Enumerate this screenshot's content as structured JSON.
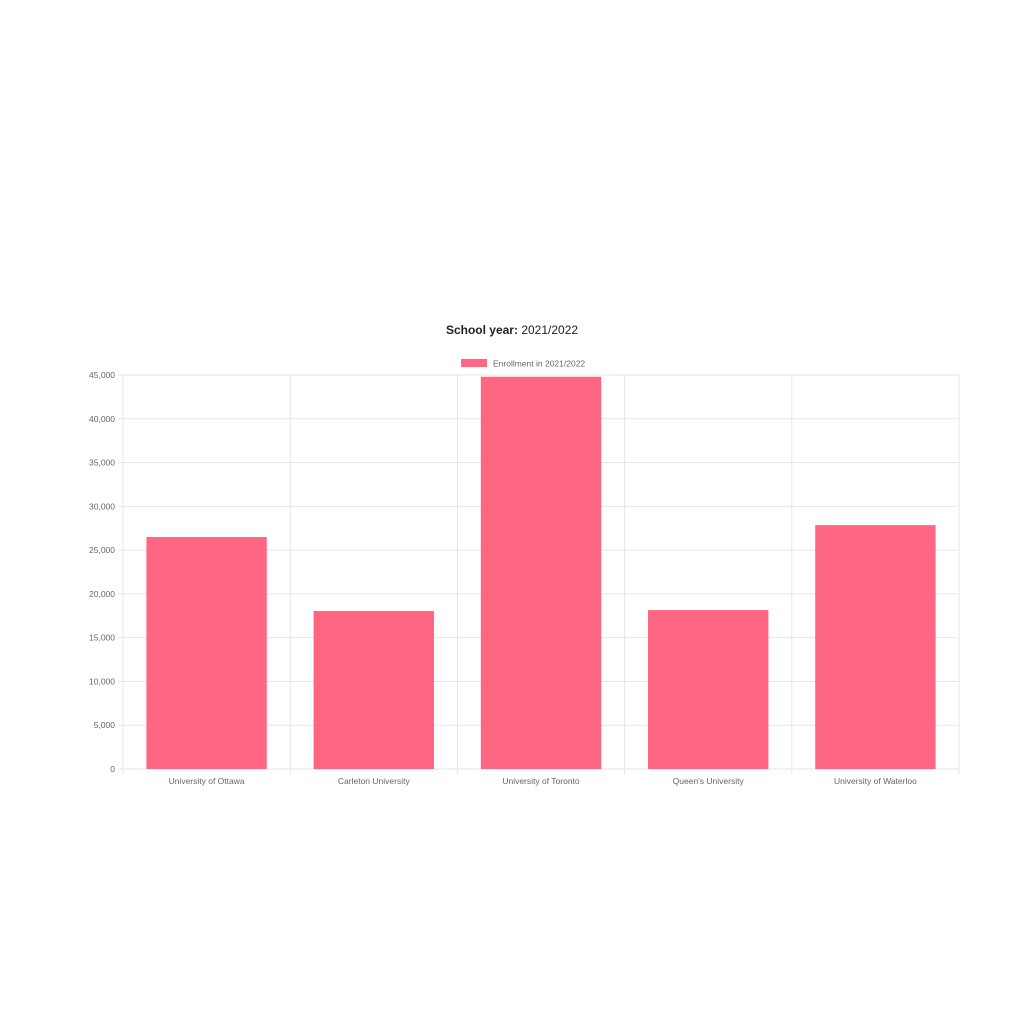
{
  "title": {
    "label": "School year:",
    "value": "2021/2022"
  },
  "colors": {
    "bar": "#ff6682",
    "grid": "#e6e6e6",
    "axis_text": "#666666"
  },
  "chart_data": {
    "type": "bar",
    "title": "School year: 2021/2022",
    "categories": [
      "University of Ottawa",
      "Carleton University",
      "University of Toronto",
      "Queen's University",
      "University of Waterloo"
    ],
    "series": [
      {
        "name": "Enrollment in 2021/2022",
        "values": [
          26500,
          18050,
          44800,
          18150,
          27850
        ]
      }
    ],
    "ylim": [
      0,
      45000
    ],
    "yticks": [
      0,
      5000,
      10000,
      15000,
      20000,
      25000,
      30000,
      35000,
      40000,
      45000
    ],
    "ytick_labels": [
      "0",
      "5,000",
      "10,000",
      "15,000",
      "20,000",
      "25,000",
      "30,000",
      "35,000",
      "40,000",
      "45,000"
    ],
    "xlabel": "",
    "ylabel": "",
    "grid": true,
    "legend": "top-center"
  }
}
